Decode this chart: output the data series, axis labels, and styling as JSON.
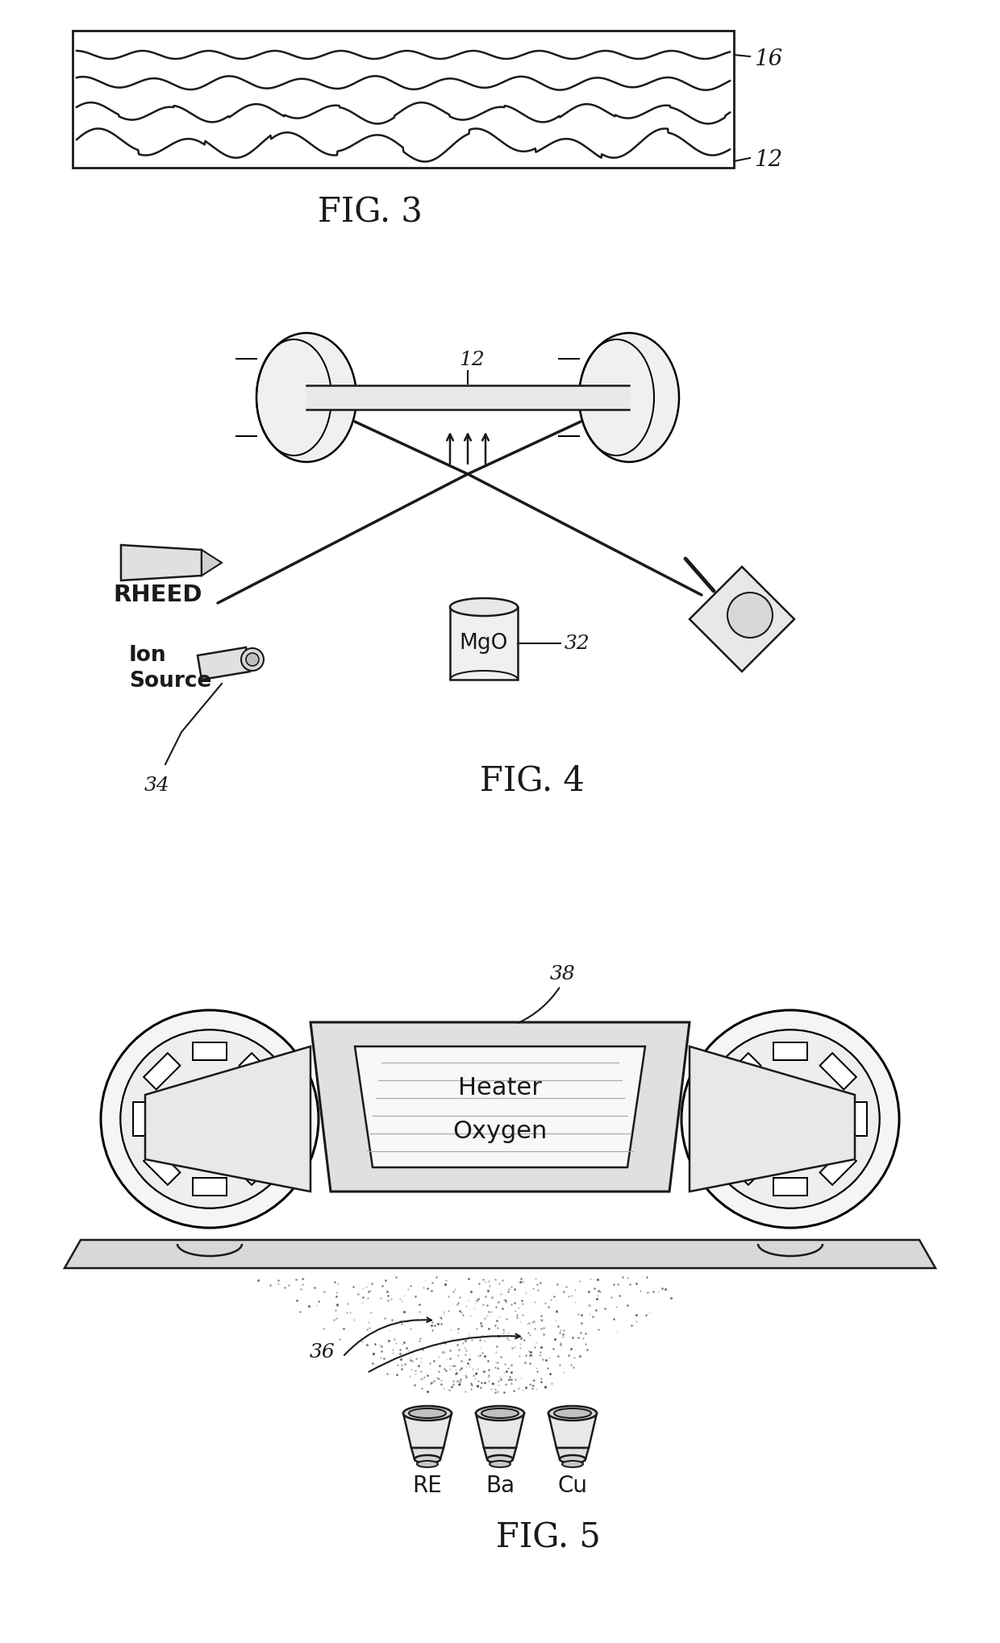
{
  "bg_color": "#ffffff",
  "line_color": "#1a1a1a",
  "fig3": {
    "title": "FIG. 3",
    "label_16": "16",
    "label_12": "12"
  },
  "fig4": {
    "title": "FIG. 4",
    "label_12": "12",
    "label_32": "32",
    "label_34": "34",
    "label_rheed": "RHEED",
    "label_ion": "Ion",
    "label_source": "Source"
  },
  "fig5": {
    "title": "FIG. 5",
    "label_38": "38",
    "label_36": "36",
    "label_heater": "Heater",
    "label_oxygen": "Oxygen",
    "label_RE": "RE",
    "label_Ba": "Ba",
    "label_Cu": "Cu"
  }
}
